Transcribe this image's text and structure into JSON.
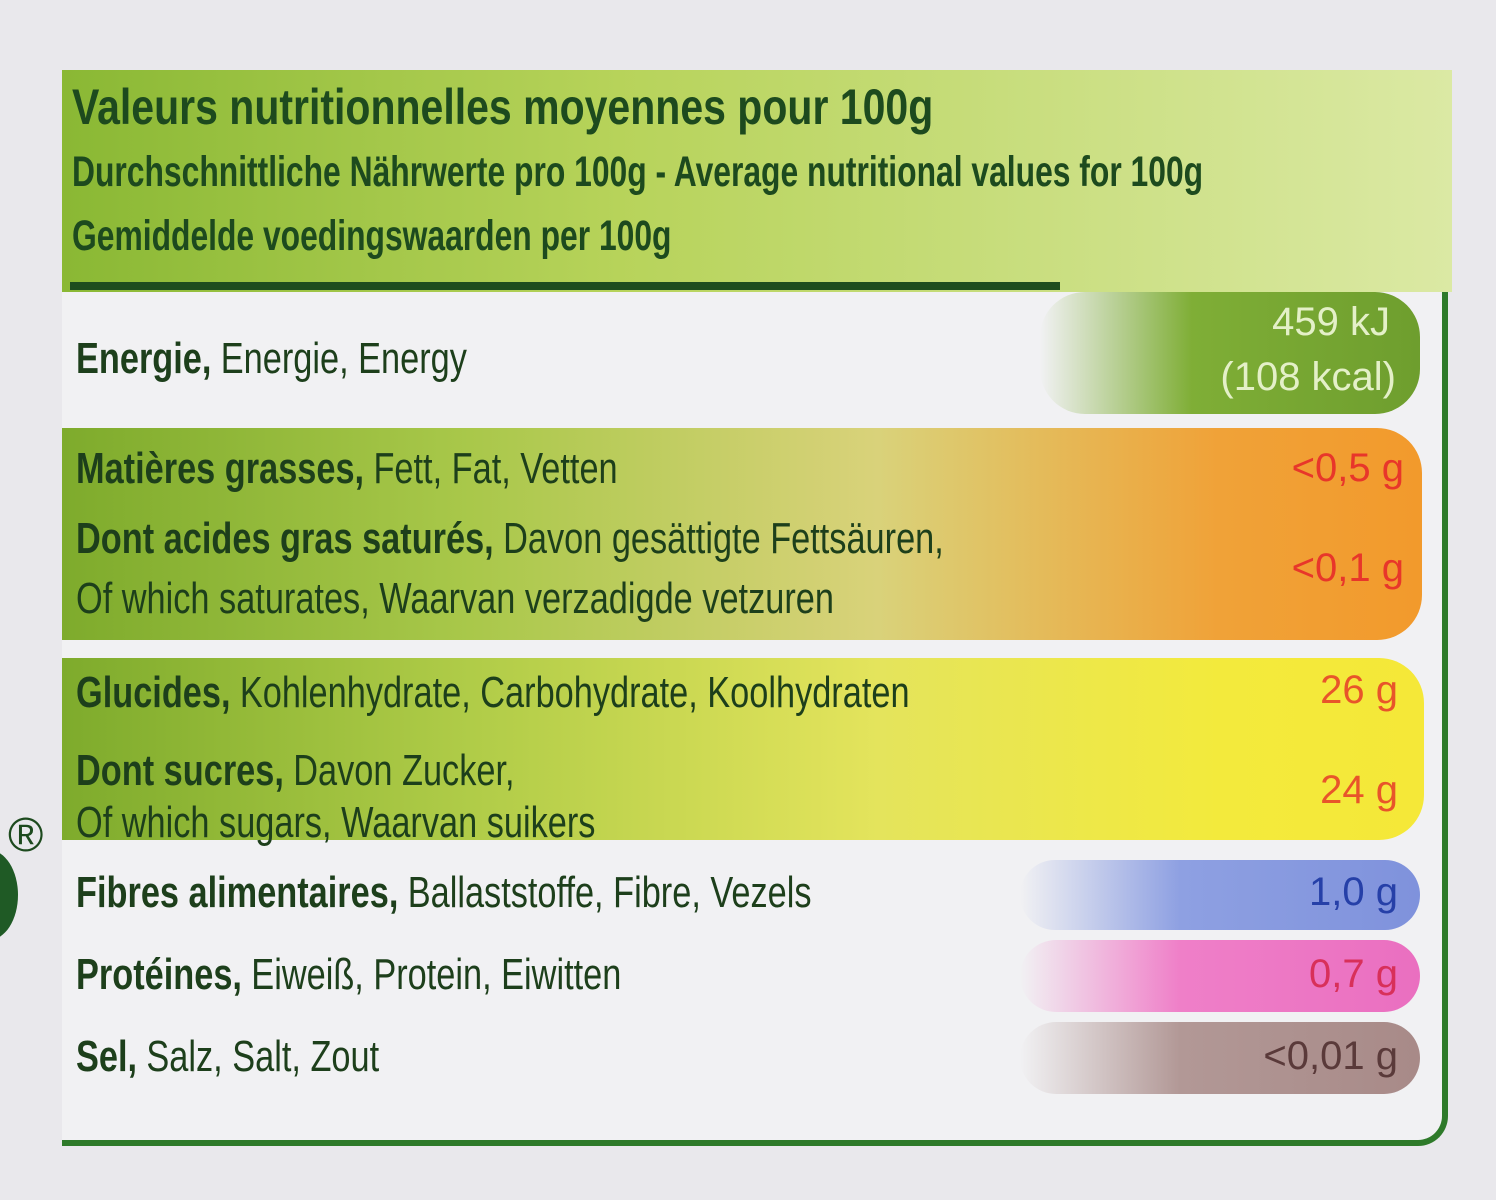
{
  "header": {
    "title": "Valeurs nutritionnelles moyennes pour 100g",
    "subtitle_1": "Durchschnittliche Nährwerte pro 100g - Average nutritional values for 100g",
    "subtitle_2": "Gemiddelde voedingswaarden per 100g"
  },
  "registered_mark": "®",
  "rows": [
    {
      "bold": "Energie,",
      "rest": "Energie, Energy",
      "value": [
        "459 kJ",
        "(108 kcal)"
      ]
    },
    {
      "bold": "Matières grasses,",
      "rest": "Fett, Fat, Vetten",
      "value": "<0,5 g"
    },
    {
      "bold": "Dont acides gras saturés,",
      "rest": "Davon gesättigte Fettsäuren,",
      "line_2": "Of which saturates, Waarvan verzadigde vetzuren",
      "value": "<0,1 g"
    },
    {
      "bold": "Glucides,",
      "rest": "Kohlenhydrate, Carbohydrate, Koolhydraten",
      "value": "26 g"
    },
    {
      "bold": "Dont sucres,",
      "rest": "Davon Zucker,",
      "line_2": "Of which sugars, Waarvan suikers",
      "value": "24 g"
    },
    {
      "bold": "Fibres alimentaires,",
      "rest": "Ballaststoffe, Fibre, Vezels",
      "value": "1,0 g"
    },
    {
      "bold": "Protéines,",
      "rest": "Eiweiß, Protein, Eiwitten",
      "value": "0,7 g"
    },
    {
      "bold": "Sel,",
      "rest": "Salz, Salt, Zout",
      "value": "<0,01 g"
    }
  ]
}
